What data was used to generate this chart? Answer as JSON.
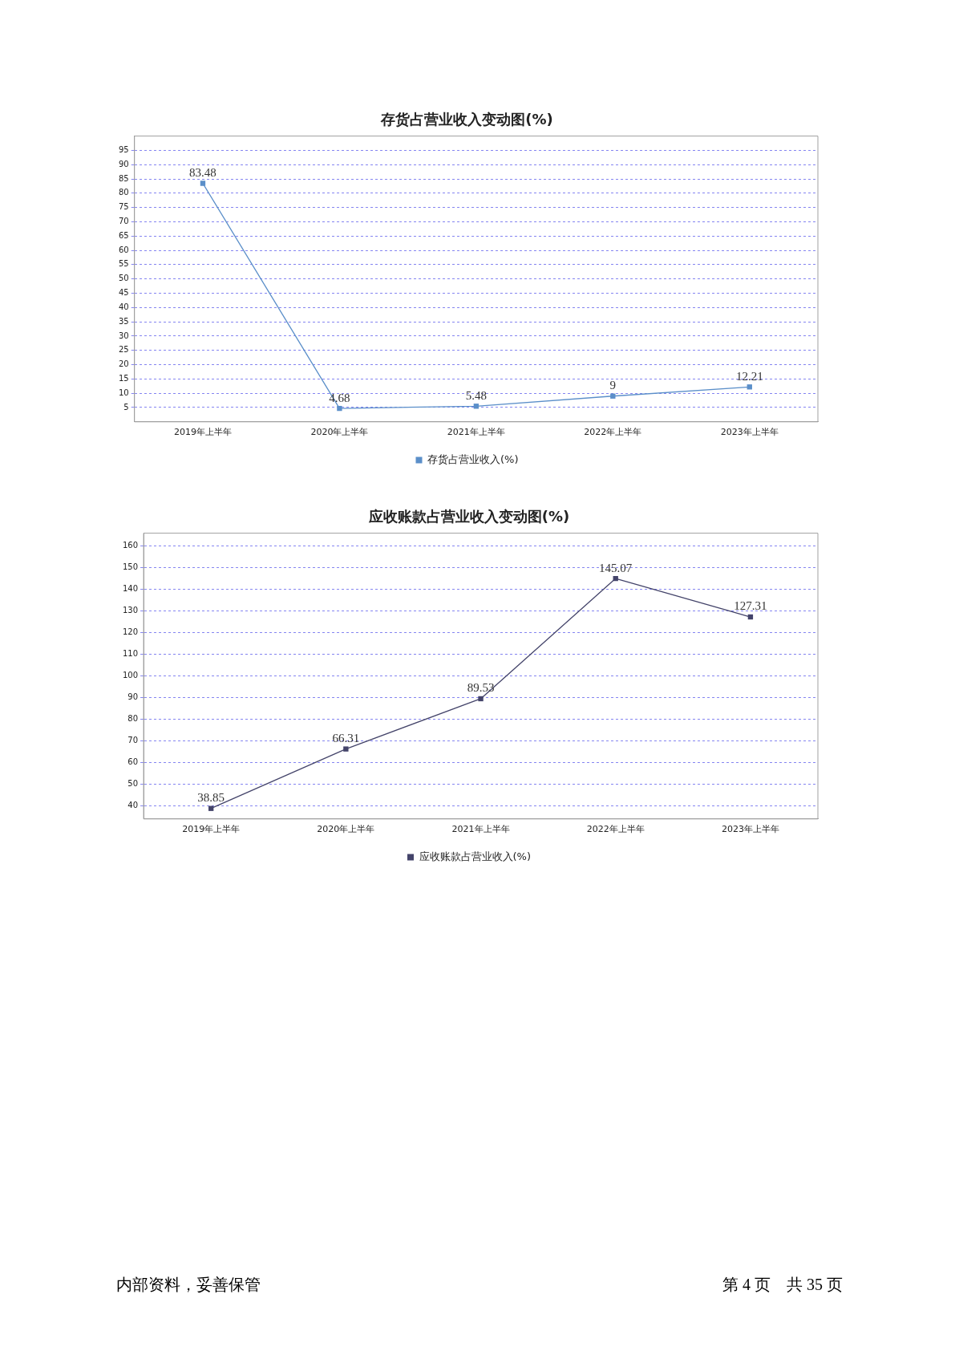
{
  "chart_data": [
    {
      "type": "line",
      "title": "存货占营业收入变动图(%)",
      "categories": [
        "2019年上半年",
        "2020年上半年",
        "2021年上半年",
        "2022年上半年",
        "2023年上半年"
      ],
      "series": [
        {
          "name": "存货占营业收入(%)",
          "color": "#5b8fc9",
          "values": [
            83.48,
            4.68,
            5.48,
            9,
            12.21
          ]
        }
      ],
      "ylim": [
        0,
        100
      ],
      "yticks": [
        5,
        10,
        15,
        20,
        25,
        30,
        35,
        40,
        45,
        50,
        55,
        60,
        65,
        70,
        75,
        80,
        85,
        90,
        95
      ],
      "grid": "y",
      "legend": "bottom",
      "marker": "square",
      "line_style": "solid",
      "data_labels": true
    },
    {
      "type": "line",
      "title": "应收账款占营业收入变动图(%)",
      "categories": [
        "2019年上半年",
        "2020年上半年",
        "2021年上半年",
        "2022年上半年",
        "2023年上半年"
      ],
      "series": [
        {
          "name": "应收账款占营业收入(%)",
          "color": "#44446a",
          "values": [
            38.85,
            66.31,
            89.53,
            145.07,
            127.31
          ]
        }
      ],
      "ylim": [
        34,
        166
      ],
      "yticks": [
        40,
        50,
        60,
        70,
        80,
        90,
        100,
        110,
        120,
        130,
        140,
        150,
        160
      ],
      "grid": "y",
      "legend": "bottom",
      "marker": "square",
      "line_style": "solid",
      "data_labels": true,
      "annotations": [
        "内部资料，妥善保管",
        "第 4 页　共 35 页"
      ]
    }
  ]
}
